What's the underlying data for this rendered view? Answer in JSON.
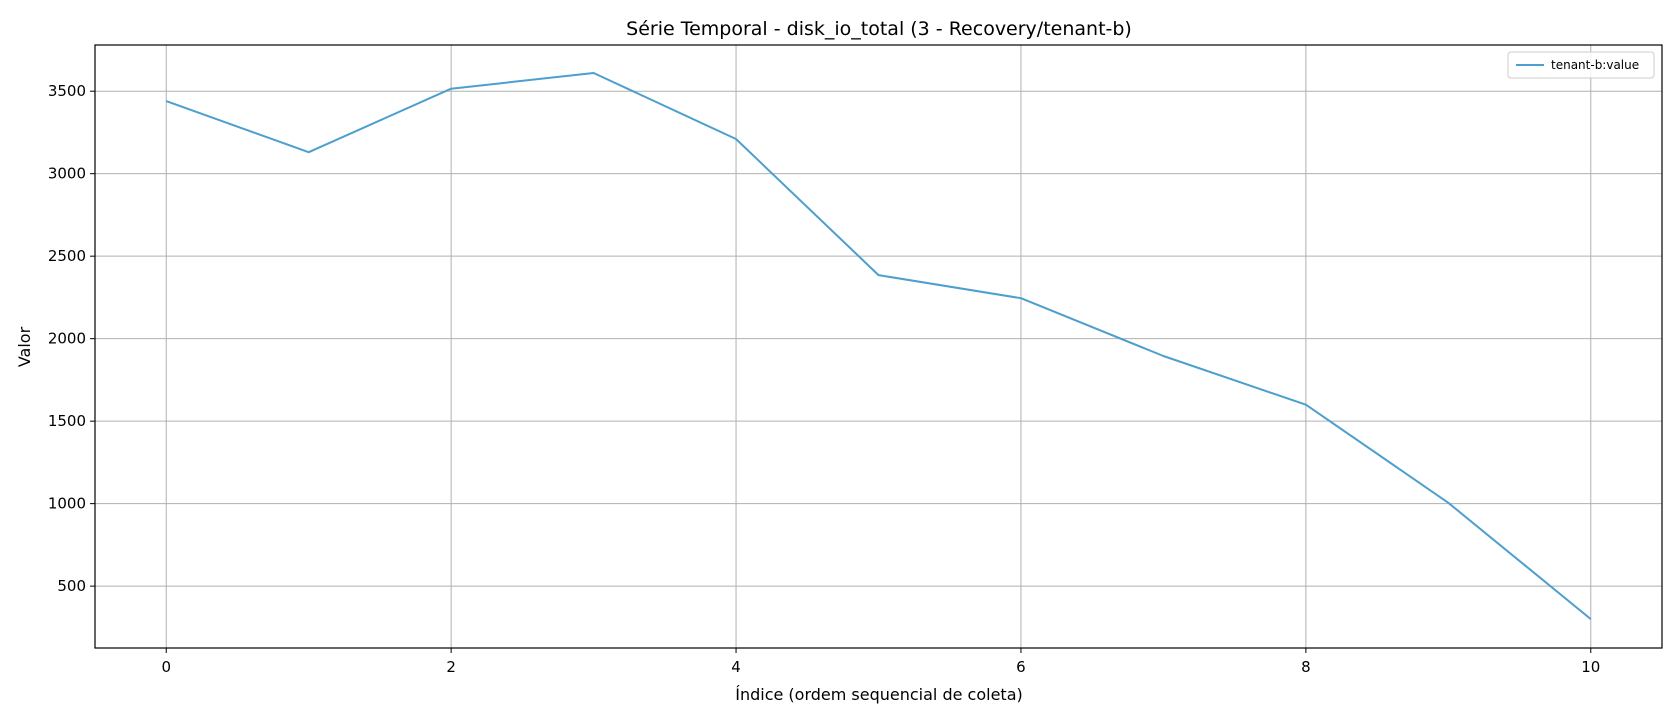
{
  "chart_data": {
    "type": "line",
    "title": "Série Temporal - disk_io_total (3 - Recovery/tenant-b)",
    "xlabel": "Índice (ordem sequencial de coleta)",
    "ylabel": "Valor",
    "x": [
      0,
      1,
      2,
      3,
      4,
      5,
      6,
      7,
      8,
      9,
      10
    ],
    "series": [
      {
        "name": "tenant-b:value",
        "color": "#4c9fce",
        "values": [
          3440,
          3130,
          3515,
          3610,
          3210,
          2385,
          2245,
          1895,
          1600,
          1005,
          300
        ]
      }
    ],
    "xlim": [
      -0.5,
      10.5
    ],
    "ylim": [
      125,
      3780
    ],
    "xticks": [
      0,
      2,
      4,
      6,
      8,
      10
    ],
    "yticks": [
      500,
      1000,
      1500,
      2000,
      2500,
      3000,
      3500
    ],
    "grid": true,
    "legend_position": "top-right"
  }
}
